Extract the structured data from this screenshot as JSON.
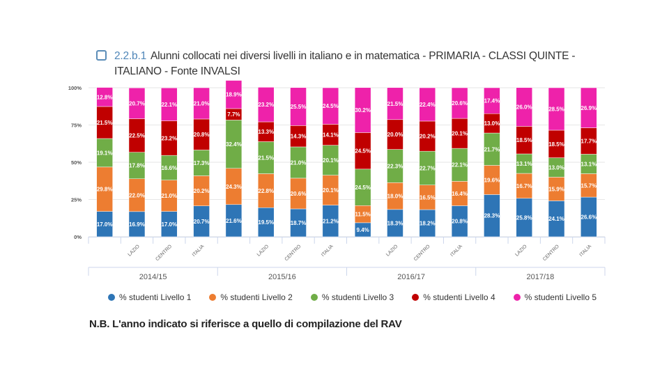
{
  "title": {
    "code": "2.2.b.1",
    "text": "Alunni collocati nei diversi livelli in italiano e in matematica - PRIMARIA - CLASSI QUINTE - ITALIANO - Fonte INVALSI"
  },
  "note": "N.B. L'anno indicato si riferisce a quello di compilazione del RAV",
  "chart_data": {
    "type": "bar",
    "stacked": true,
    "normalized": true,
    "title": "2.2.b.1 Alunni collocati nei diversi livelli in italiano e in matematica - PRIMARIA - CLASSI QUINTE - ITALIANO - Fonte INVALSI",
    "xlabel": "",
    "ylabel": "",
    "ylim": [
      0,
      100
    ],
    "y_ticks": [
      "0%",
      "25%",
      "50%",
      "75%",
      "100%"
    ],
    "grid": true,
    "legend_position": "bottom",
    "groups": [
      "2014/15",
      "2015/16",
      "2016/17",
      "2017/18"
    ],
    "categories": [
      "",
      "LAZIO",
      "CENTRO",
      "ITALIA",
      "",
      "LAZIO",
      "CENTRO",
      "ITALIA",
      "",
      "LAZIO",
      "CENTRO",
      "ITALIA",
      "",
      "LAZIO",
      "CENTRO",
      "ITALIA"
    ],
    "series": [
      {
        "name": "% studenti Livello 1",
        "color": "#2e75b6",
        "values": [
          17.0,
          16.9,
          17.0,
          20.7,
          21.6,
          19.5,
          18.7,
          21.2,
          9.4,
          18.3,
          18.2,
          20.8,
          28.3,
          25.8,
          24.1,
          26.6
        ]
      },
      {
        "name": "% studenti Livello 2",
        "color": "#ed7d31",
        "values": [
          29.8,
          22.0,
          21.0,
          20.2,
          24.3,
          22.8,
          20.6,
          20.1,
          11.5,
          18.0,
          16.5,
          16.4,
          19.6,
          16.7,
          15.9,
          15.7
        ]
      },
      {
        "name": "% studenti Livello 3",
        "color": "#70ad47",
        "values": [
          19.1,
          17.8,
          16.6,
          17.3,
          32.4,
          21.5,
          21.0,
          20.1,
          24.5,
          22.3,
          22.7,
          22.1,
          21.7,
          13.1,
          13.0,
          13.1
        ]
      },
      {
        "name": "% studenti Livello 4",
        "color": "#c00000",
        "values": [
          21.5,
          22.5,
          23.2,
          20.8,
          7.7,
          13.3,
          14.3,
          14.1,
          24.5,
          20.0,
          20.2,
          20.1,
          13.0,
          18.5,
          18.5,
          17.7
        ]
      },
      {
        "name": "% studenti Livello 5",
        "color": "#ee22aa",
        "values": [
          12.8,
          20.7,
          22.1,
          21.0,
          18.9,
          23.2,
          25.5,
          24.5,
          30.2,
          21.5,
          22.4,
          20.6,
          17.4,
          26.0,
          28.5,
          26.9
        ]
      }
    ]
  }
}
